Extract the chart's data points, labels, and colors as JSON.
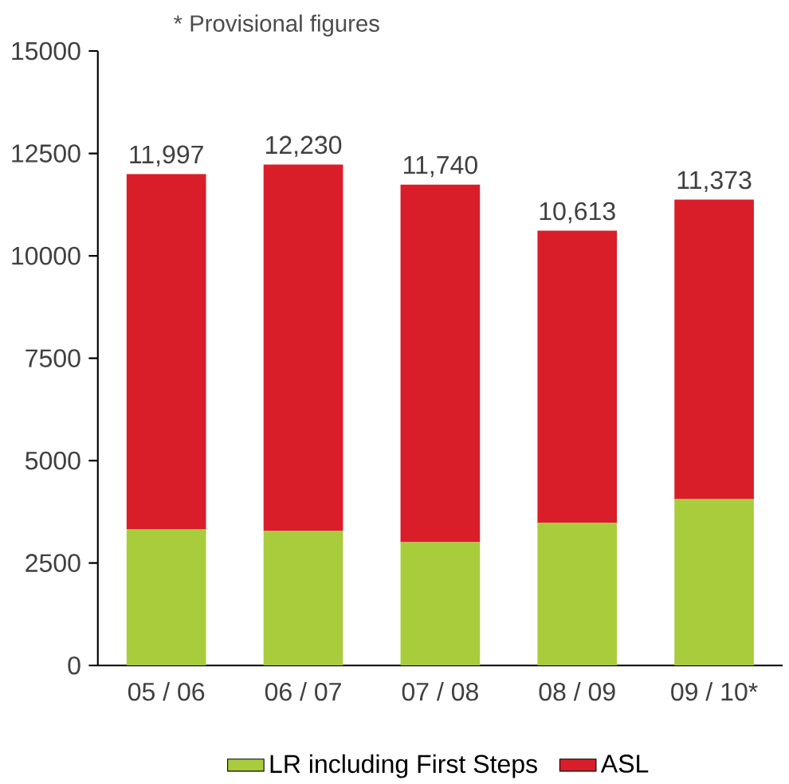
{
  "chart_data": {
    "type": "bar",
    "stacked": true,
    "annotations": [
      "* Provisional figures"
    ],
    "categories": [
      "05 / 06",
      "06 / 07",
      "07 / 08",
      "08 / 09",
      "09 / 10*"
    ],
    "series": [
      {
        "name": "LR including First Steps",
        "color": "#a8cc3c",
        "values": [
          3320,
          3280,
          3010,
          3480,
          4060
        ]
      },
      {
        "name": "ASL",
        "color": "#d91e2a",
        "values": [
          8677,
          8950,
          8730,
          7133,
          7313
        ]
      }
    ],
    "totals": [
      "11,997",
      "12,230",
      "11,740",
      "10,613",
      "11,373"
    ],
    "ylim": [
      0,
      15000
    ],
    "yticks": [
      0,
      2500,
      5000,
      7500,
      10000,
      12500,
      15000
    ],
    "grid": false,
    "legend": "bottom"
  }
}
